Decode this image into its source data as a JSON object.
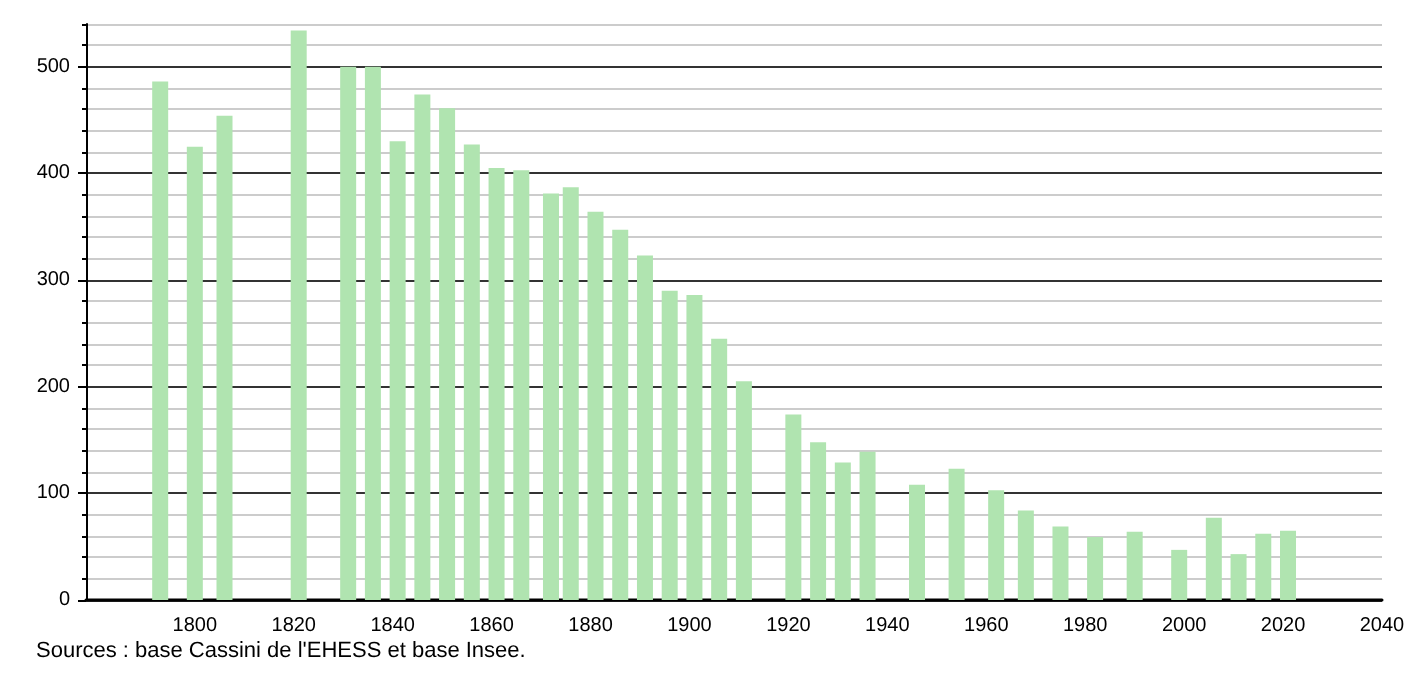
{
  "chart_data": {
    "type": "bar",
    "x": [
      1793,
      1800,
      1806,
      1821,
      1831,
      1836,
      1841,
      1846,
      1851,
      1856,
      1861,
      1866,
      1872,
      1876,
      1881,
      1886,
      1891,
      1896,
      1901,
      1906,
      1911,
      1921,
      1926,
      1931,
      1936,
      1946,
      1954,
      1962,
      1968,
      1975,
      1982,
      1990,
      1999,
      2006,
      2011,
      2016,
      2021
    ],
    "values": [
      486,
      425,
      454,
      534,
      500,
      500,
      430,
      474,
      461,
      427,
      405,
      403,
      381,
      387,
      364,
      347,
      323,
      290,
      286,
      245,
      205,
      174,
      148,
      129,
      139,
      108,
      123,
      103,
      84,
      69,
      59,
      64,
      47,
      77,
      43,
      62,
      65
    ],
    "color": "#b0e4b0",
    "xlim": [
      1778,
      2040
    ],
    "xticks": [
      1800,
      1820,
      1840,
      1860,
      1880,
      1900,
      1920,
      1940,
      1960,
      1980,
      2000,
      2020,
      2040
    ],
    "ylim": [
      0,
      540
    ],
    "yticks": [
      0,
      100,
      200,
      300,
      400,
      500
    ],
    "grid": "y",
    "annotations": [
      "Sources : base Cassini de l'EHESS et base Insee."
    ]
  }
}
